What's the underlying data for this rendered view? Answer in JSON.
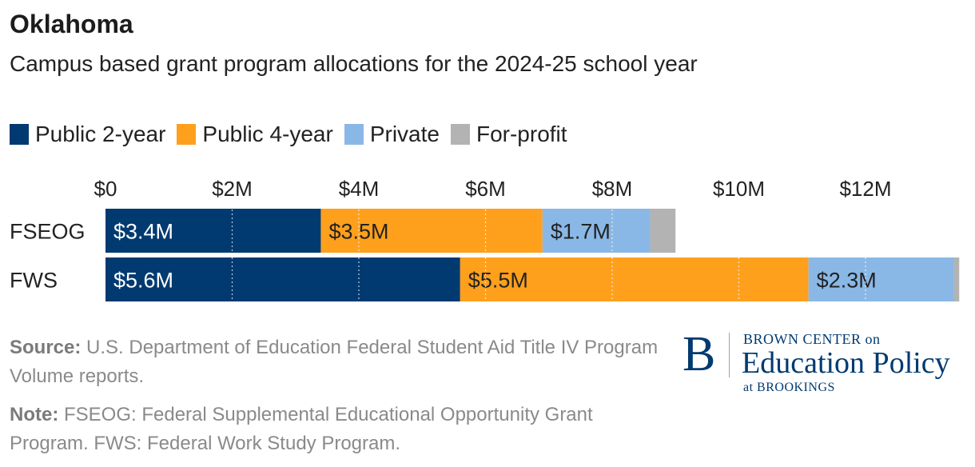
{
  "title": "Oklahoma",
  "subtitle": "Campus based grant program allocations for the 2024-25 school year",
  "legend": [
    {
      "label": "Public 2-year",
      "color": "#003a70"
    },
    {
      "label": "Public 4-year",
      "color": "#ffa01d"
    },
    {
      "label": "Private",
      "color": "#8ab8e6"
    },
    {
      "label": "For-profit",
      "color": "#b3b3b3"
    }
  ],
  "chart_data": {
    "type": "bar",
    "orientation": "horizontal",
    "stacked": true,
    "categories": [
      "FSEOG",
      "FWS"
    ],
    "series": [
      {
        "name": "Public 2-year",
        "values": [
          3.4,
          5.6
        ],
        "labels": [
          "$3.4M",
          "$5.6M"
        ],
        "color": "#003a70",
        "label_color": "#ffffff"
      },
      {
        "name": "Public 4-year",
        "values": [
          3.5,
          5.5
        ],
        "labels": [
          "$3.5M",
          "$5.5M"
        ],
        "color": "#ffa01d",
        "label_color": "#222222"
      },
      {
        "name": "Private",
        "values": [
          1.7,
          2.3
        ],
        "labels": [
          "$1.7M",
          "$2.3M"
        ],
        "color": "#8ab8e6",
        "label_color": "#222222"
      },
      {
        "name": "For-profit",
        "values": [
          0.4,
          0.08
        ],
        "labels": [
          "",
          ""
        ],
        "color": "#b3b3b3",
        "label_color": "#222222"
      }
    ],
    "x_ticks": [
      0,
      2,
      4,
      6,
      8,
      10,
      12
    ],
    "x_tick_labels": [
      "$0",
      "$2M",
      "$4M",
      "$6M",
      "$8M",
      "$10M",
      "$12M"
    ],
    "xlim": [
      0,
      13.5
    ],
    "grid": "vertical dotted",
    "legend_position": "top-left"
  },
  "footer": {
    "source_label": "Source:",
    "source_text": " U.S. Department of Education Federal Student Aid Title IV Program Volume reports.",
    "note_label": "Note:",
    "note_text": " FSEOG: Federal Supplemental Educational Opportunity Grant Program. FWS: Federal Work Study Program."
  },
  "logo": {
    "letter": "B",
    "line1": "BROWN CENTER on",
    "line2": "Education Policy",
    "line3": "at BROOKINGS"
  }
}
